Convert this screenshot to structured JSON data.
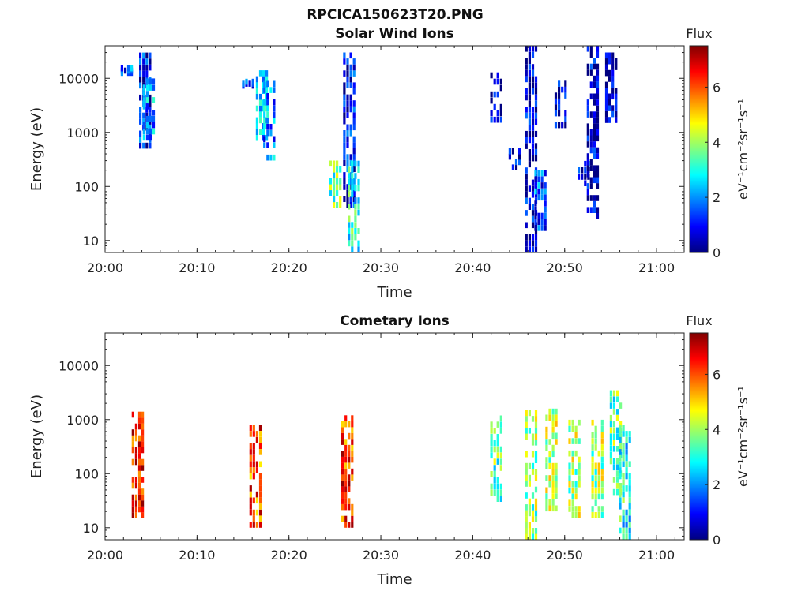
{
  "figure_title": "RPCICA150623T20.PNG",
  "colormap": [
    "#000080",
    "#0000ff",
    "#0080ff",
    "#00ffff",
    "#80ff80",
    "#ffff00",
    "#ff8000",
    "#ff0000",
    "#800000"
  ],
  "chart_data": [
    {
      "type": "heatmap",
      "title": "Solar Wind Ions",
      "xlabel": "Time",
      "ylabel": "Energy (eV)",
      "x_range": [
        "20:00",
        "21:03"
      ],
      "x_ticks": [
        "20:00",
        "20:10",
        "20:20",
        "20:30",
        "20:40",
        "20:50",
        "21:00"
      ],
      "y_scale": "log",
      "y_range": [
        6,
        40000
      ],
      "y_ticks": [
        "10",
        "100",
        "1000",
        "10000"
      ],
      "colorbar": {
        "label": "Flux",
        "units": "eV⁻¹cm⁻²sr⁻¹s⁻¹",
        "range": [
          0,
          7.5
        ],
        "ticks": [
          "0",
          "2",
          "4",
          "6"
        ]
      },
      "cells": [
        {
          "t_min": 4.3,
          "e_min": 500,
          "e_max": 30000,
          "value": 1.0
        },
        {
          "t_min": 4.7,
          "e_min": 700,
          "e_max": 10000,
          "value": 2.0
        },
        {
          "t_min": 2.3,
          "e_min": 12000,
          "e_max": 16000,
          "value": 1.5
        },
        {
          "t_min": 15.5,
          "e_min": 7000,
          "e_max": 9000,
          "value": 1.0
        },
        {
          "t_min": 17.0,
          "e_min": 700,
          "e_max": 14000,
          "value": 2.5
        },
        {
          "t_min": 17.8,
          "e_min": 300,
          "e_max": 9000,
          "value": 2.0
        },
        {
          "t_min": 25.0,
          "e_min": 40,
          "e_max": 300,
          "value": 3.5
        },
        {
          "t_min": 26.5,
          "e_min": 40,
          "e_max": 30000,
          "value": 1.0
        },
        {
          "t_min": 27.0,
          "e_min": 6,
          "e_max": 300,
          "value": 3.0
        },
        {
          "t_min": 42.5,
          "e_min": 1500,
          "e_max": 13000,
          "value": 0.5
        },
        {
          "t_min": 44.5,
          "e_min": 200,
          "e_max": 500,
          "value": 0.7
        },
        {
          "t_min": 46.3,
          "e_min": 6,
          "e_max": 40000,
          "value": 0.6
        },
        {
          "t_min": 47.3,
          "e_min": 15,
          "e_max": 200,
          "value": 1.5
        },
        {
          "t_min": 49.5,
          "e_min": 1200,
          "e_max": 9000,
          "value": 0.5
        },
        {
          "t_min": 52.0,
          "e_min": 100,
          "e_max": 300,
          "value": 0.7
        },
        {
          "t_min": 53.0,
          "e_min": 25,
          "e_max": 40000,
          "value": 0.5
        },
        {
          "t_min": 55.0,
          "e_min": 1500,
          "e_max": 30000,
          "value": 0.4
        }
      ]
    },
    {
      "type": "heatmap",
      "title": "Cometary Ions",
      "xlabel": "Time",
      "ylabel": "Energy (eV)",
      "x_range": [
        "20:00",
        "21:03"
      ],
      "x_ticks": [
        "20:00",
        "20:10",
        "20:20",
        "20:30",
        "20:40",
        "20:50",
        "21:00"
      ],
      "y_scale": "log",
      "y_range": [
        6,
        40000
      ],
      "y_ticks": [
        "10",
        "100",
        "1000",
        "10000"
      ],
      "colorbar": {
        "label": "Flux",
        "units": "eV⁻¹cm⁻²sr⁻¹s⁻¹",
        "range": [
          0,
          7.5
        ],
        "ticks": [
          "0",
          "2",
          "4",
          "6"
        ]
      },
      "cells": [
        {
          "t_min": 3.5,
          "e_min": 15,
          "e_max": 1400,
          "value": 6.5
        },
        {
          "t_min": 16.3,
          "e_min": 10,
          "e_max": 800,
          "value": 6.0
        },
        {
          "t_min": 26.3,
          "e_min": 10,
          "e_max": 1200,
          "value": 6.2
        },
        {
          "t_min": 42.5,
          "e_min": 30,
          "e_max": 1200,
          "value": 3.5
        },
        {
          "t_min": 46.3,
          "e_min": 6,
          "e_max": 1500,
          "value": 3.8
        },
        {
          "t_min": 48.5,
          "e_min": 20,
          "e_max": 1600,
          "value": 4.2
        },
        {
          "t_min": 51.0,
          "e_min": 15,
          "e_max": 1000,
          "value": 4.0
        },
        {
          "t_min": 53.5,
          "e_min": 15,
          "e_max": 1000,
          "value": 4.0
        },
        {
          "t_min": 55.5,
          "e_min": 40,
          "e_max": 3500,
          "value": 3.5
        },
        {
          "t_min": 56.5,
          "e_min": 6,
          "e_max": 800,
          "value": 3.0
        }
      ]
    }
  ]
}
